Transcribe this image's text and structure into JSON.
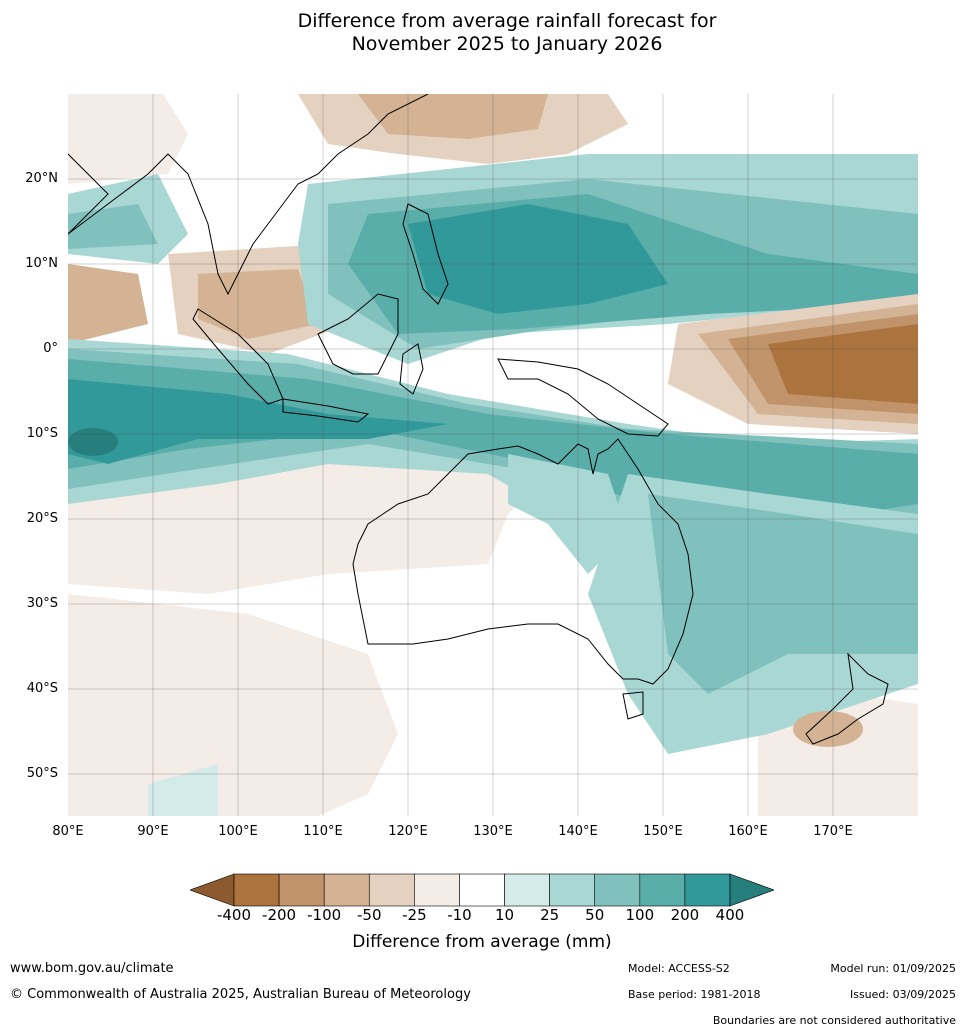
{
  "title_line1": "Difference from average rainfall forecast for",
  "title_line2": "November 2025 to January 2026",
  "lat_labels": [
    {
      "value": 20,
      "text": "20°N"
    },
    {
      "value": 10,
      "text": "10°N"
    },
    {
      "value": 0,
      "text": "0°"
    },
    {
      "value": -10,
      "text": "10°S"
    },
    {
      "value": -20,
      "text": "20°S"
    },
    {
      "value": -30,
      "text": "30°S"
    },
    {
      "value": -40,
      "text": "40°S"
    },
    {
      "value": -50,
      "text": "50°S"
    }
  ],
  "lon_labels": [
    {
      "value": 80,
      "text": "80°E"
    },
    {
      "value": 90,
      "text": "90°E"
    },
    {
      "value": 100,
      "text": "100°E"
    },
    {
      "value": 110,
      "text": "110°E"
    },
    {
      "value": 120,
      "text": "120°E"
    },
    {
      "value": 130,
      "text": "130°E"
    },
    {
      "value": 140,
      "text": "140°E"
    },
    {
      "value": 150,
      "text": "150°E"
    },
    {
      "value": 160,
      "text": "160°E"
    },
    {
      "value": 170,
      "text": "170°E"
    }
  ],
  "map_extent": {
    "lon": [
      80,
      180
    ],
    "lat": [
      -55,
      30
    ]
  },
  "colorbar": {
    "title": "Difference from average (mm)",
    "ticks": [
      "-400",
      "-200",
      "-100",
      "-50",
      "-25",
      "-10",
      "10",
      "25",
      "50",
      "100",
      "200",
      "400"
    ],
    "colors": [
      "#8c5a2e",
      "#ab743e",
      "#c0936a",
      "#d3b393",
      "#e5d1bf",
      "#f4ece6",
      "#ffffff",
      "#d5ebe9",
      "#a9d7d4",
      "#80c1be",
      "#5aaeaa",
      "#32999b",
      "#267f7c"
    ]
  },
  "footer": {
    "url": "www.bom.gov.au/climate",
    "copyright": "© Commonwealth of Australia 2025, Australian Bureau of Meteorology",
    "model": "Model: ACCESS-S2",
    "base_period": "Base period: 1981-2018",
    "model_run": "Model run: 01/09/2025",
    "issued": "Issued: 03/09/2025",
    "disclaimer": "Boundaries are not considered authoritative"
  }
}
